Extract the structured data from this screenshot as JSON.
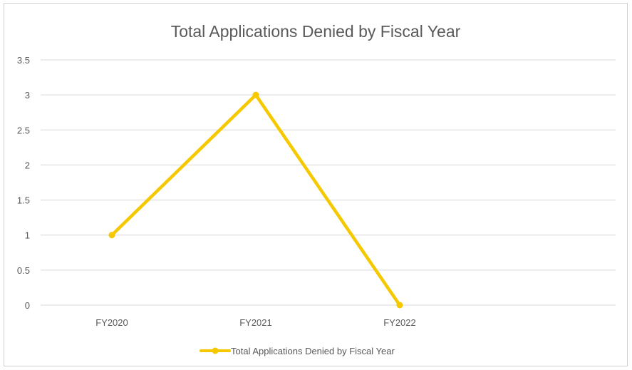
{
  "chart_data": {
    "type": "line",
    "title": "Total Applications Denied by Fiscal Year",
    "xlabel": "",
    "ylabel": "",
    "categories": [
      "FY2020",
      "FY2021",
      "FY2022"
    ],
    "series": [
      {
        "name": "Total Applications Denied by Fiscal Year",
        "values": [
          1,
          3,
          0
        ],
        "color": "#f5c800"
      }
    ],
    "ylim": [
      0,
      3.5
    ],
    "yticks": [
      "0",
      "0.5",
      "1",
      "1.5",
      "2",
      "2.5",
      "3",
      "3.5"
    ],
    "grid": true,
    "legend_position": "bottom",
    "gridline_color": "#d9d9d9"
  }
}
